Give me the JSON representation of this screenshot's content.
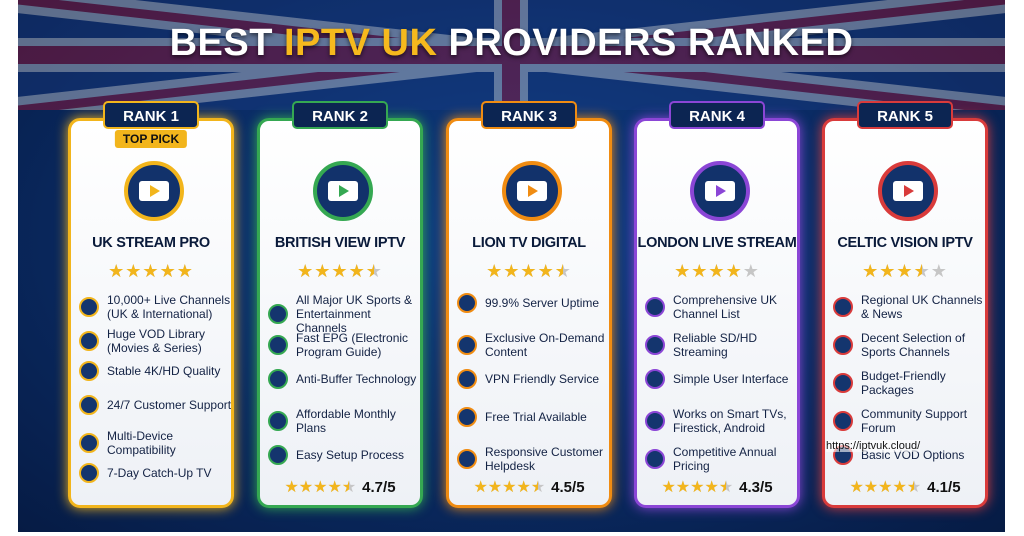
{
  "title": {
    "before": "BEST",
    "highlight": "IPTV UK",
    "after": "PROVIDERS RANKED"
  },
  "watermark": "https://iptvuk.cloud/",
  "cards": [
    {
      "rank": "RANK 1",
      "badge": "TOP PICK",
      "name": "UK STREAM PRO",
      "color": "#f2b51c",
      "stars": 5,
      "features": [
        "10,000+ Live Channels (UK & International)",
        "Huge VOD Library (Movies & Series)",
        "Stable 4K/HD Quality",
        "24/7 Customer Support",
        "Multi-Device Compatibility",
        "7-Day Catch-Up TV"
      ]
    },
    {
      "rank": "RANK 2",
      "name": "BRITISH VIEW IPTV",
      "color": "#35a852",
      "stars": 4.5,
      "features": [
        "All Major UK Sports & Entertainment Channels",
        "Fast EPG (Electronic Program Guide)",
        "Anti-Buffer Technology",
        "Affordable Monthly Plans",
        "Easy Setup Process"
      ],
      "footer_stars": 4.5,
      "rating": "4.7/5"
    },
    {
      "rank": "RANK 3",
      "name": "LION TV DIGITAL",
      "color": "#f08c12",
      "stars": 4.5,
      "features": [
        "99.9% Server Uptime",
        "Exclusive On-Demand Content",
        "VPN Friendly Service",
        "Free Trial Available",
        "Responsive Customer Helpdesk"
      ],
      "footer_stars": 4.5,
      "rating": "4.5/5"
    },
    {
      "rank": "RANK 4",
      "name": "LONDON LIVE STREAM",
      "color": "#8b46d6",
      "stars": 4,
      "features": [
        "Comprehensive UK Channel List",
        "Reliable SD/HD Streaming",
        "Simple User Interface",
        "Works on Smart TVs, Firestick, Android",
        "Competitive Annual Pricing"
      ],
      "footer_stars": 4.5,
      "rating": "4.3/5"
    },
    {
      "rank": "RANK 5",
      "name": "CELTIC VISION IPTV",
      "color": "#d93b3b",
      "stars": 3.5,
      "features": [
        "Regional UK Channels & News",
        "Decent Selection of Sports Channels",
        "Budget-Friendly Packages",
        "Community Support Forum",
        "Basic VOD Options"
      ],
      "footer_stars": 4.5,
      "rating": "4.1/5"
    }
  ]
}
